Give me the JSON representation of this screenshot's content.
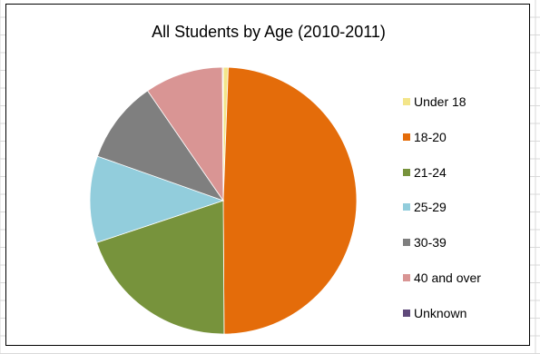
{
  "chart_data": {
    "type": "pie",
    "title": "All Students by Age (2010-2011)",
    "legend_position": "right",
    "slices": [
      {
        "label": "Under 18",
        "value": 0.6,
        "color": "#F3E58A"
      },
      {
        "label": "18-20",
        "value": 49.3,
        "color": "#E46C0A"
      },
      {
        "label": "21-24",
        "value": 20.0,
        "color": "#77933C"
      },
      {
        "label": "25-29",
        "value": 10.5,
        "color": "#92CDDC"
      },
      {
        "label": "30-39",
        "value": 10.0,
        "color": "#7F7F7F"
      },
      {
        "label": "40 and over",
        "value": 9.5,
        "color": "#D99594"
      },
      {
        "label": "Unknown",
        "value": 0.1,
        "color": "#5F497A"
      }
    ]
  }
}
